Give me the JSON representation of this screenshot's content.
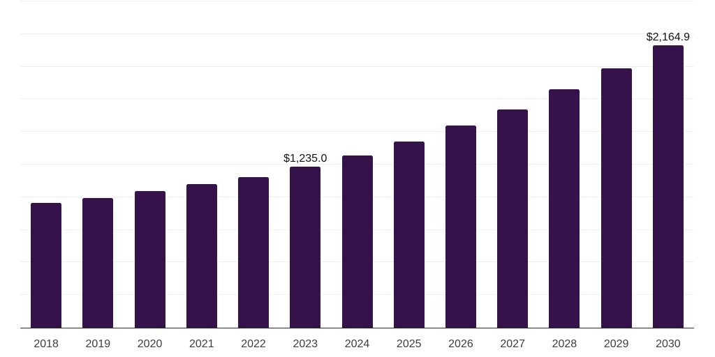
{
  "chart_data": {
    "type": "bar",
    "title": "",
    "xlabel": "",
    "ylabel": "",
    "categories": [
      "2018",
      "2019",
      "2020",
      "2021",
      "2022",
      "2023",
      "2024",
      "2025",
      "2026",
      "2027",
      "2028",
      "2029",
      "2030"
    ],
    "values": [
      958.5,
      992.6,
      1045.8,
      1099.1,
      1155.5,
      1235.0,
      1320.6,
      1423.9,
      1551.7,
      1670.4,
      1824.9,
      1984.6,
      2164.9
    ],
    "value_labels": [
      {
        "category": "2023",
        "text": "$1,235.0"
      },
      {
        "category": "2030",
        "text": "$2,164.9"
      }
    ],
    "ylim": [
      0,
      2500
    ],
    "grid_step": 250,
    "grid": true,
    "legend_position": "none",
    "colors": {
      "bar": "#36124B",
      "gridline": "#f0f0f0",
      "axis": "#2b2b2b",
      "value_label": "#111111",
      "tick_label": "#3d3d3d",
      "background": "#ffffff"
    }
  }
}
